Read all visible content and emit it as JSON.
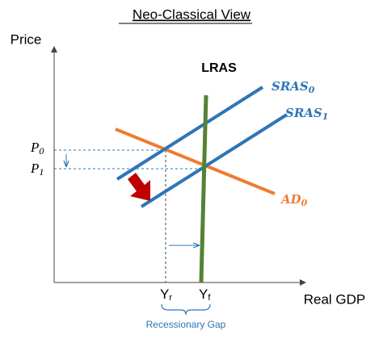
{
  "title": "Neo-Classical View",
  "axes": {
    "y_label": "Price",
    "x_label": "Real GDP"
  },
  "curves": {
    "lras": {
      "label": "LRAS"
    },
    "sras0": {
      "main": "SRAS",
      "sub": "0"
    },
    "sras1": {
      "main": "SRAS",
      "sub": "1"
    },
    "ad0": {
      "main": "AD",
      "sub": "0"
    }
  },
  "prices": [
    {
      "main": "P",
      "sub": "0"
    },
    {
      "main": "P",
      "sub": "1"
    }
  ],
  "outputs": [
    {
      "main": "Y",
      "sub": "r"
    },
    {
      "main": "Y",
      "sub": "f"
    }
  ],
  "gap_label": "Recessionary Gap"
}
